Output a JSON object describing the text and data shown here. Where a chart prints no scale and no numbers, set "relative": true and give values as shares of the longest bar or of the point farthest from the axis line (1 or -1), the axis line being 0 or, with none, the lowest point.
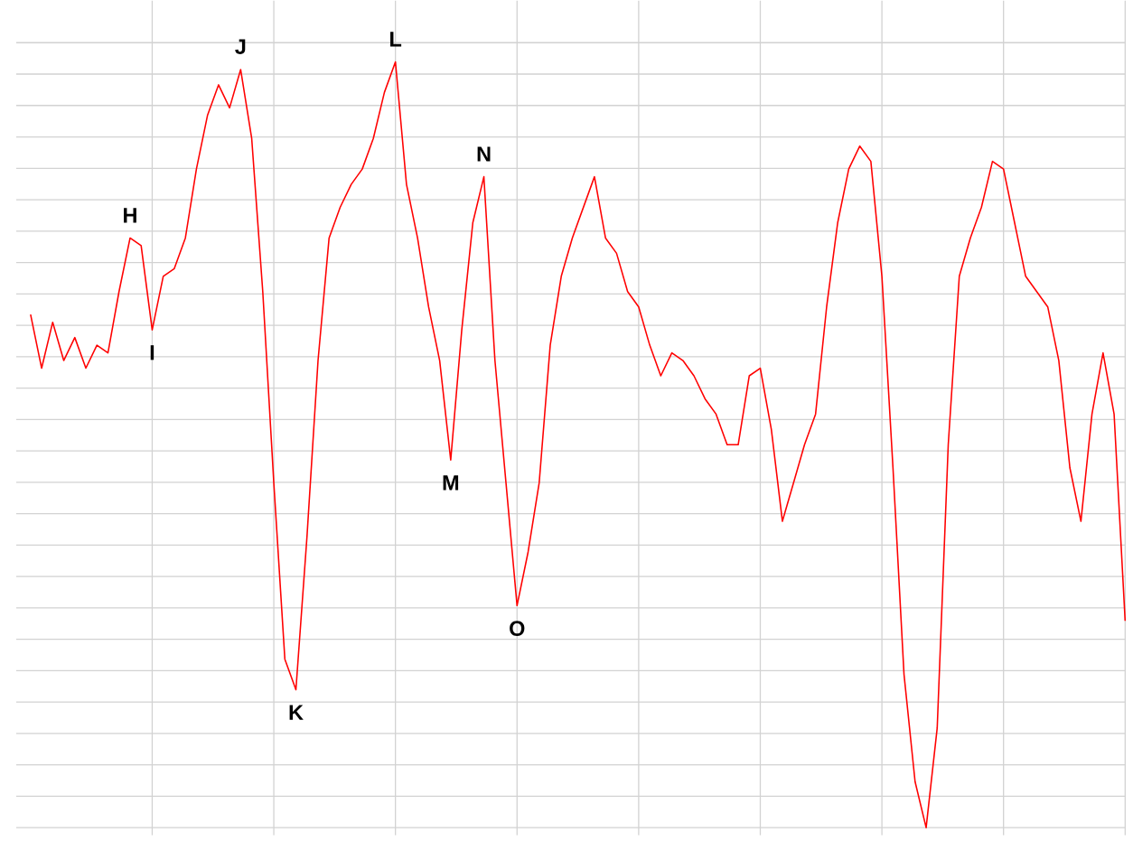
{
  "chart_data": {
    "type": "line",
    "relative": true,
    "grid": true,
    "color": "#ff0000",
    "categories": [
      null,
      null,
      null,
      null,
      null,
      null,
      null,
      null,
      null,
      null,
      null,
      null,
      null,
      null,
      null,
      null,
      null,
      null,
      null,
      null,
      null,
      null,
      null,
      null,
      null,
      null,
      null,
      null,
      null,
      null,
      null,
      null,
      null,
      null,
      null,
      null,
      null,
      null,
      null,
      null,
      null,
      null,
      null,
      null,
      null,
      null,
      null,
      null,
      null,
      null,
      null,
      null,
      null,
      null,
      null,
      null,
      null,
      null,
      null,
      null,
      null,
      null,
      null,
      null,
      null,
      null,
      null,
      null,
      null,
      null,
      null,
      null,
      null,
      null,
      null,
      null,
      null,
      null,
      null,
      null,
      null,
      null,
      null,
      null,
      null,
      null,
      null,
      null,
      null,
      null,
      null,
      null,
      null,
      null,
      null,
      null,
      null,
      null,
      null,
      null
    ],
    "values": [
      0.67,
      0.6,
      0.66,
      0.61,
      0.64,
      0.6,
      0.63,
      0.62,
      0.7,
      0.77,
      0.76,
      0.65,
      0.72,
      0.73,
      0.77,
      0.86,
      0.93,
      0.97,
      0.94,
      0.99,
      0.9,
      0.7,
      0.45,
      0.22,
      0.18,
      0.38,
      0.61,
      0.77,
      0.81,
      0.84,
      0.86,
      0.9,
      0.96,
      1.0,
      0.84,
      0.77,
      0.68,
      0.61,
      0.48,
      0.65,
      0.79,
      0.85,
      0.61,
      0.45,
      0.29,
      0.36,
      0.45,
      0.63,
      0.72,
      0.77,
      0.81,
      0.85,
      0.77,
      0.75,
      0.7,
      0.68,
      0.63,
      0.59,
      0.62,
      0.61,
      0.59,
      0.56,
      0.54,
      0.5,
      0.5,
      0.59,
      0.6,
      0.52,
      0.4,
      0.45,
      0.5,
      0.54,
      0.68,
      0.79,
      0.86,
      0.89,
      0.87,
      0.72,
      0.47,
      0.2,
      0.06,
      0,
      0.13,
      0.5,
      0.72,
      0.77,
      0.81,
      0.87,
      0.86,
      0.79,
      0.72,
      0.7,
      0.68,
      0.61,
      0.47,
      0.4,
      0.54,
      0.62,
      0.54,
      0.27
    ],
    "annotations": [
      {
        "text": "H",
        "y": 0.77
      },
      {
        "text": "I",
        "y": 0.65
      },
      {
        "text": "J",
        "y": 0.99
      },
      {
        "text": "K",
        "y": 0.18
      },
      {
        "text": "L",
        "y": 1.0
      },
      {
        "text": "M",
        "y": 0.48
      },
      {
        "text": "N",
        "y": 0.85
      },
      {
        "text": "O",
        "y": 0.29
      }
    ]
  }
}
